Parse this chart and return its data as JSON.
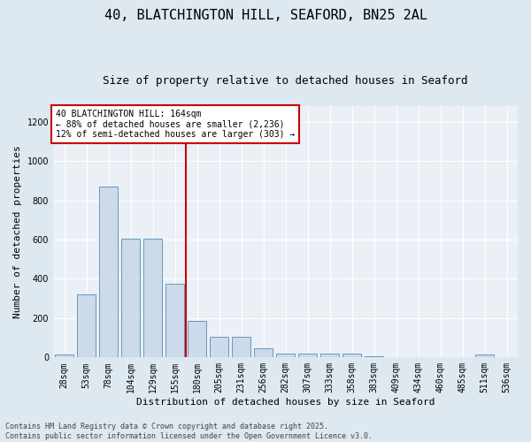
{
  "title_line1": "40, BLATCHINGTON HILL, SEAFORD, BN25 2AL",
  "title_line2": "Size of property relative to detached houses in Seaford",
  "xlabel": "Distribution of detached houses by size in Seaford",
  "ylabel": "Number of detached properties",
  "categories": [
    "28sqm",
    "53sqm",
    "78sqm",
    "104sqm",
    "129sqm",
    "155sqm",
    "180sqm",
    "205sqm",
    "231sqm",
    "256sqm",
    "282sqm",
    "307sqm",
    "333sqm",
    "358sqm",
    "383sqm",
    "409sqm",
    "434sqm",
    "460sqm",
    "485sqm",
    "511sqm",
    "536sqm"
  ],
  "values": [
    13,
    320,
    870,
    605,
    605,
    375,
    185,
    105,
    105,
    45,
    20,
    18,
    18,
    20,
    5,
    0,
    0,
    0,
    0,
    13,
    0
  ],
  "bar_color": "#ccdaea",
  "bar_edge_color": "#6699bb",
  "vline_color": "#cc0000",
  "annotation_text": "40 BLATCHINGTON HILL: 164sqm\n← 88% of detached houses are smaller (2,236)\n12% of semi-detached houses are larger (303) →",
  "annotation_box_color": "#ffffff",
  "annotation_box_edge": "#cc0000",
  "ylim": [
    0,
    1280
  ],
  "yticks": [
    0,
    200,
    400,
    600,
    800,
    1000,
    1200
  ],
  "footer_line1": "Contains HM Land Registry data © Crown copyright and database right 2025.",
  "footer_line2": "Contains public sector information licensed under the Open Government Licence v3.0.",
  "background_color": "#dde8f0",
  "plot_background": "#eaf0f6",
  "title_fontsize": 11,
  "subtitle_fontsize": 9,
  "label_fontsize": 8,
  "tick_fontsize": 7,
  "footer_fontsize": 6,
  "annotation_fontsize": 7
}
